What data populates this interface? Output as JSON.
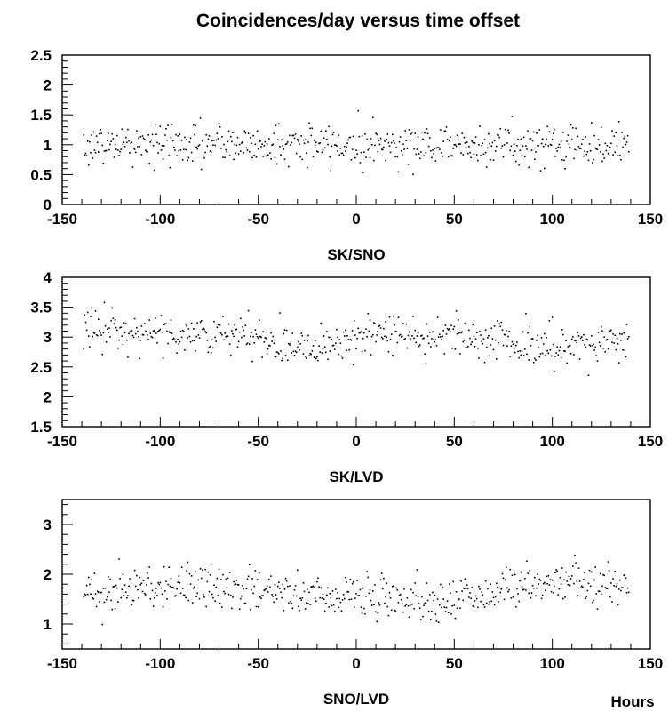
{
  "title": "Coincidences/day versus time offset",
  "corner_label": "Hours",
  "chart_data": [
    {
      "type": "scatter",
      "title": "",
      "xlabel": "SK/SNO",
      "ylabel": "",
      "xlim": [
        -150,
        150
      ],
      "ylim": [
        0,
        2.5
      ],
      "x_ticks": [
        "-150",
        "-100",
        "-50",
        "0",
        "50",
        "100",
        "150"
      ],
      "y_ticks": [
        "0",
        "0.5",
        "1",
        "1.5",
        "2",
        "2.5"
      ],
      "grid": false,
      "series": [
        {
          "x_range": [
            -139,
            139
          ],
          "x_step": 0.5,
          "y_trend": [
            [
              -139,
              1.0
            ],
            [
              139,
              1.0
            ]
          ],
          "y_spread": 0.32,
          "y_clip": [
            0.25,
            2.3
          ]
        }
      ]
    },
    {
      "type": "scatter",
      "title": "",
      "xlabel": "SK/LVD",
      "ylabel": "",
      "xlim": [
        -150,
        150
      ],
      "ylim": [
        1.5,
        4
      ],
      "x_ticks": [
        "-150",
        "-100",
        "-50",
        "0",
        "50",
        "100",
        "150"
      ],
      "y_ticks": [
        "1.5",
        "2",
        "2.5",
        "3",
        "3.5",
        "4"
      ],
      "grid": false,
      "series": [
        {
          "x_range": [
            -139,
            139
          ],
          "x_step": 0.5,
          "y_trend": [
            [
              -139,
              3.15
            ],
            [
              -60,
              3.0
            ],
            [
              -25,
              2.85
            ],
            [
              0,
              3.0
            ],
            [
              55,
              3.05
            ],
            [
              100,
              2.8
            ],
            [
              139,
              2.95
            ]
          ],
          "y_spread": 0.32,
          "y_clip": [
            1.9,
            3.95
          ]
        }
      ]
    },
    {
      "type": "scatter",
      "title": "",
      "xlabel": "SNO/LVD",
      "ylabel": "",
      "xlim": [
        -150,
        150
      ],
      "ylim": [
        0.5,
        3.5
      ],
      "x_ticks": [
        "-150",
        "-100",
        "-50",
        "0",
        "50",
        "100",
        "150"
      ],
      "y_ticks": [
        "1",
        "2",
        "3"
      ],
      "grid": false,
      "series": [
        {
          "x_range": [
            -139,
            139
          ],
          "x_step": 0.5,
          "y_trend": [
            [
              -139,
              1.65
            ],
            [
              -85,
              1.8
            ],
            [
              -40,
              1.6
            ],
            [
              0,
              1.6
            ],
            [
              45,
              1.45
            ],
            [
              100,
              1.9
            ],
            [
              139,
              1.7
            ]
          ],
          "y_spread": 0.38,
          "y_clip": [
            0.75,
            3.1
          ]
        }
      ]
    }
  ]
}
